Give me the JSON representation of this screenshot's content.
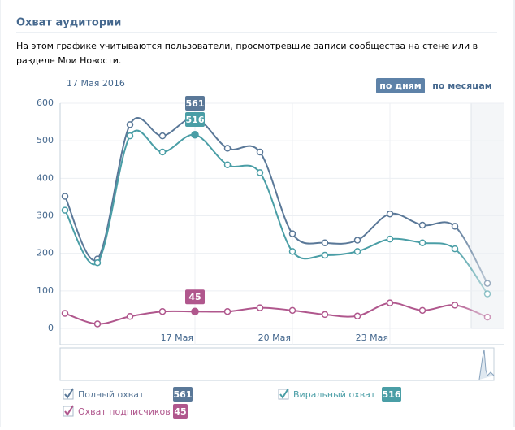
{
  "header": {
    "title": "Охват аудитории",
    "description": "На этом графике учитываются пользователи, просмотревшие записи сообщества на стене или в разделе Мои Новости."
  },
  "date": "17 Мая 2016",
  "buttons": [
    "по дням",
    "по месяцам"
  ],
  "chart_data": {
    "type": "line",
    "categories": [
      null,
      null,
      null,
      null,
      "17 Мая",
      null,
      null,
      "20 Мая",
      null,
      null,
      "23 Мая",
      null,
      null,
      null
    ],
    "series": [
      {
        "name": "Полный охват",
        "color": "#5a7898",
        "values": [
          352,
          185,
          543,
          513,
          561,
          480,
          470,
          252,
          228,
          235,
          305,
          275,
          272,
          120
        ]
      },
      {
        "name": "Виральный охват",
        "color": "#4a9ea6",
        "values": [
          315,
          175,
          513,
          470,
          516,
          436,
          415,
          205,
          195,
          205,
          238,
          228,
          212,
          92
        ]
      },
      {
        "name": "Охват подписчиков",
        "color": "#b0578d",
        "values": [
          40,
          12,
          32,
          45,
          45,
          45,
          55,
          48,
          37,
          33,
          68,
          48,
          62,
          30
        ]
      }
    ],
    "ylim": [
      0,
      600
    ],
    "yticks": [
      0,
      100,
      200,
      300,
      400,
      500,
      600
    ],
    "grid": true,
    "highlight": 4
  }
}
